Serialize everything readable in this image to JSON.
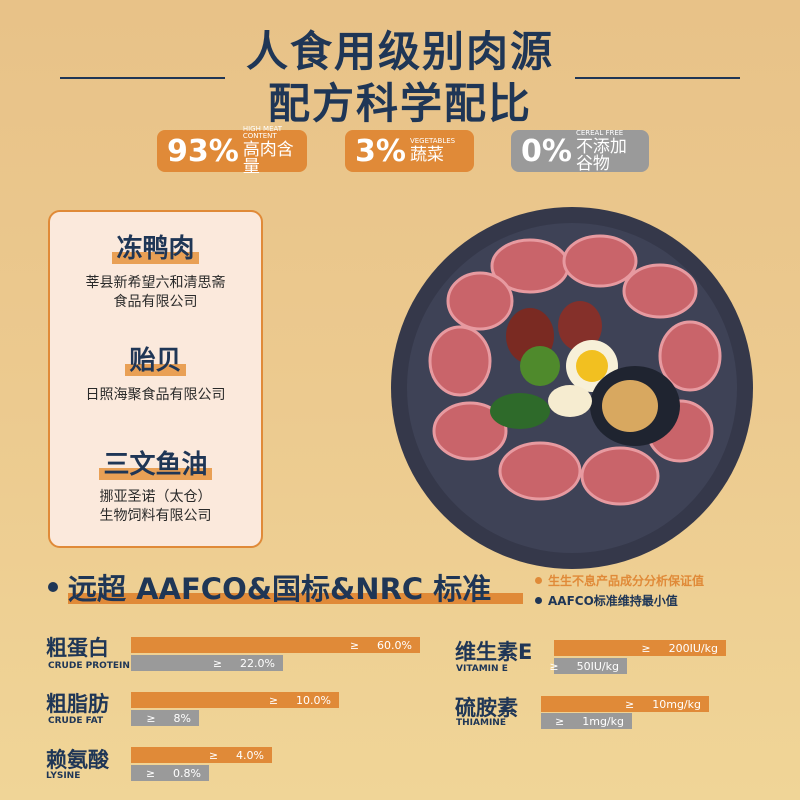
{
  "header": {
    "line1": "人食用级别肉源",
    "line2": "配方科学配比"
  },
  "badges": [
    {
      "pct": "93%",
      "en": "HIGH MEAT CONTENT",
      "cn": "高肉含量",
      "color": "#e08a38"
    },
    {
      "pct": "3%",
      "en": "VEGETABLES",
      "cn": "蔬菜",
      "color": "#e08a38"
    },
    {
      "pct": "0%",
      "en": "CEREAL FREE",
      "cn": "不添加谷物",
      "color": "#9a9a9a"
    }
  ],
  "sources": [
    {
      "name": "冻鸭肉",
      "supplier_l1": "莘县新希望六和清思斋",
      "supplier_l2": "食品有限公司"
    },
    {
      "name": "贻贝",
      "supplier_l1": "日照海聚食品有限公司",
      "supplier_l2": ""
    },
    {
      "name": "三文鱼油",
      "supplier_l1": "挪亚圣诺（太仓）",
      "supplier_l2": "生物饲料有限公司"
    }
  ],
  "standards": {
    "title": "远超 AAFCO&国标&NRC 标准",
    "legend": [
      {
        "label": "生生不息产品成分分析保证值",
        "color": "#e08a38"
      },
      {
        "label": "AAFCO标准维持最小值",
        "color": "#1f3656"
      }
    ],
    "ge": "≥",
    "nutrients": [
      {
        "cn": "粗蛋白",
        "en": "CRUDE PROTEIN",
        "product": "60.0%",
        "aafco": "22.0%"
      },
      {
        "cn": "粗脂肪",
        "en": "CRUDE FAT",
        "product": "10.0%",
        "aafco": "8%"
      },
      {
        "cn": "赖氨酸",
        "en": "LYSINE",
        "product": "4.0%",
        "aafco": "0.8%"
      },
      {
        "cn": "维生素E",
        "en": "VITAMIN E",
        "product": "200IU/kg",
        "aafco": "50IU/kg"
      },
      {
        "cn": "硫胺素",
        "en": "THIAMINE",
        "product": "10mg/kg",
        "aafco": "1mg/kg"
      }
    ]
  }
}
